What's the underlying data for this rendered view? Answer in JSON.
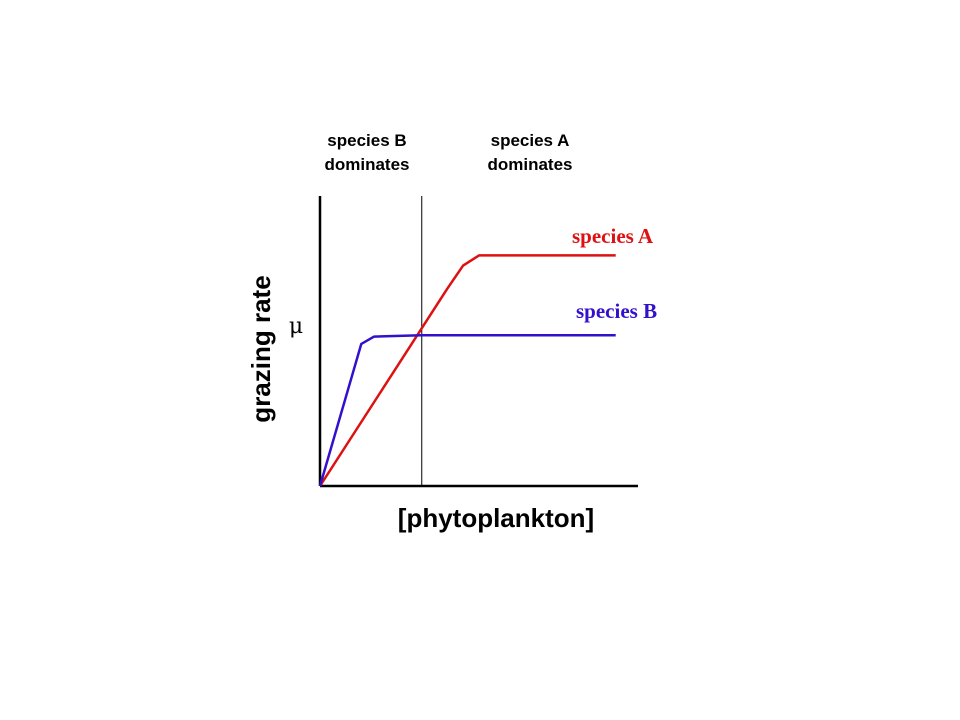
{
  "chart_data": {
    "type": "line",
    "title": "",
    "xlabel": "[phytoplankton]",
    "ylabel": "grazing rate",
    "y_symbol": "μ",
    "xlim": [
      0,
      10
    ],
    "ylim": [
      0,
      10
    ],
    "ticks": false,
    "grid": false,
    "regions": [
      {
        "label_lines": [
          "species B",
          "dominates"
        ]
      },
      {
        "label_lines": [
          "species A",
          "dominates"
        ]
      }
    ],
    "divider_x": 3.2,
    "series": [
      {
        "name": "species A",
        "color": "#dd1111",
        "x": [
          0,
          4.0,
          4.5,
          5.0,
          9.3
        ],
        "y": [
          0,
          6.8,
          7.6,
          7.95,
          7.95
        ]
      },
      {
        "name": "species B",
        "color": "#3311cc",
        "x": [
          0,
          1.3,
          1.7,
          3.2,
          9.3
        ],
        "y": [
          0,
          4.9,
          5.15,
          5.2,
          5.2
        ]
      }
    ]
  }
}
